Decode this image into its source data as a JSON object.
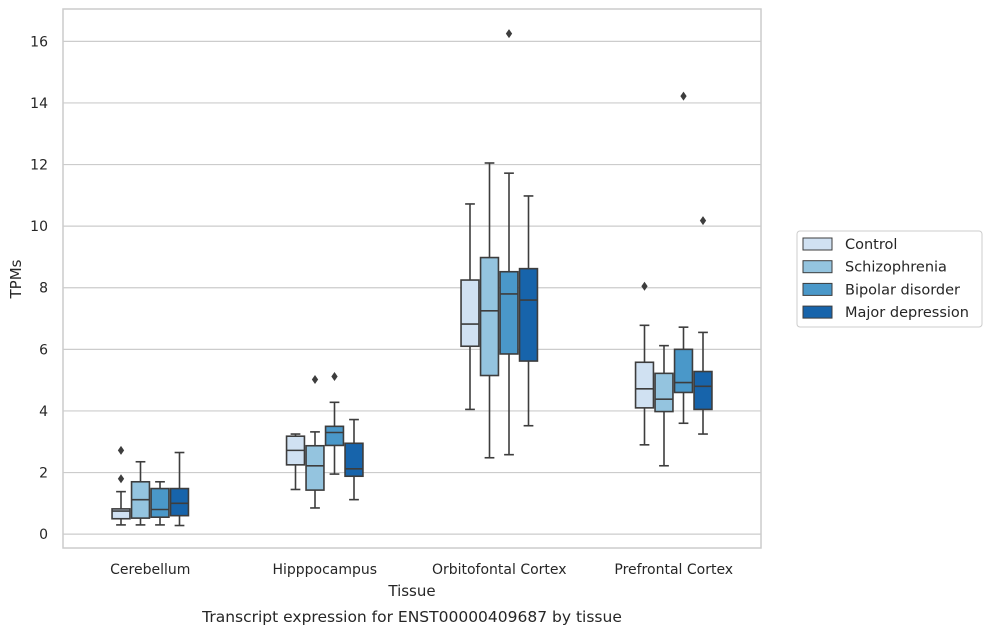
{
  "chart_data": {
    "type": "box",
    "title": "Transcript expression for ENST00000409687 by tissue",
    "xlabel": "Tissue",
    "ylabel": "TPMs",
    "ylim": [
      -0.45,
      17.05
    ],
    "yticks": [
      0,
      2,
      4,
      6,
      8,
      10,
      12,
      14,
      16
    ],
    "grid": "horizontal",
    "legend_position": "right",
    "categories": [
      "Cerebellum",
      "Hipppocampus",
      "Orbitofontal Cortex",
      "Prefrontal Cortex"
    ],
    "series": [
      {
        "name": "Control",
        "color": "#d0e1f2",
        "boxes": [
          {
            "whisker_low": 0.3,
            "q1": 0.5,
            "median": 0.75,
            "q3": 0.82,
            "whisker_high": 1.38,
            "outliers": [
              1.8,
              2.72
            ]
          },
          {
            "whisker_low": 1.45,
            "q1": 2.25,
            "median": 2.72,
            "q3": 3.18,
            "whisker_high": 3.25,
            "outliers": []
          },
          {
            "whisker_low": 4.05,
            "q1": 6.1,
            "median": 6.82,
            "q3": 8.25,
            "whisker_high": 10.72,
            "outliers": []
          },
          {
            "whisker_low": 2.9,
            "q1": 4.1,
            "median": 4.72,
            "q3": 5.58,
            "whisker_high": 6.78,
            "outliers": [
              8.05
            ]
          }
        ]
      },
      {
        "name": "Schizophrenia",
        "color": "#94c4df",
        "boxes": [
          {
            "whisker_low": 0.3,
            "q1": 0.52,
            "median": 1.12,
            "q3": 1.7,
            "whisker_high": 2.35,
            "outliers": []
          },
          {
            "whisker_low": 0.85,
            "q1": 1.43,
            "median": 2.22,
            "q3": 2.87,
            "whisker_high": 3.32,
            "outliers": [
              5.02
            ]
          },
          {
            "whisker_low": 2.48,
            "q1": 5.15,
            "median": 7.25,
            "q3": 8.98,
            "whisker_high": 12.05,
            "outliers": []
          },
          {
            "whisker_low": 2.22,
            "q1": 3.98,
            "median": 4.38,
            "q3": 5.22,
            "whisker_high": 6.12,
            "outliers": []
          }
        ]
      },
      {
        "name": "Bipolar disorder",
        "color": "#4a98c9",
        "boxes": [
          {
            "whisker_low": 0.3,
            "q1": 0.55,
            "median": 0.8,
            "q3": 1.48,
            "whisker_high": 1.7,
            "outliers": []
          },
          {
            "whisker_low": 1.95,
            "q1": 2.88,
            "median": 3.3,
            "q3": 3.5,
            "whisker_high": 4.28,
            "outliers": [
              5.12
            ]
          },
          {
            "whisker_low": 2.58,
            "q1": 5.85,
            "median": 7.8,
            "q3": 8.52,
            "whisker_high": 11.72,
            "outliers": [
              16.25
            ]
          },
          {
            "whisker_low": 3.6,
            "q1": 4.6,
            "median": 4.92,
            "q3": 6.0,
            "whisker_high": 6.72,
            "outliers": [
              14.22
            ]
          }
        ]
      },
      {
        "name": "Major depression",
        "color": "#1764ab",
        "boxes": [
          {
            "whisker_low": 0.28,
            "q1": 0.6,
            "median": 1.0,
            "q3": 1.48,
            "whisker_high": 2.65,
            "outliers": []
          },
          {
            "whisker_low": 1.12,
            "q1": 1.88,
            "median": 2.12,
            "q3": 2.95,
            "whisker_high": 3.72,
            "outliers": []
          },
          {
            "whisker_low": 3.52,
            "q1": 5.62,
            "median": 7.6,
            "q3": 8.62,
            "whisker_high": 10.98,
            "outliers": []
          },
          {
            "whisker_low": 3.25,
            "q1": 4.05,
            "median": 4.8,
            "q3": 5.28,
            "whisker_high": 6.55,
            "outliers": [
              10.18
            ]
          }
        ]
      }
    ]
  }
}
